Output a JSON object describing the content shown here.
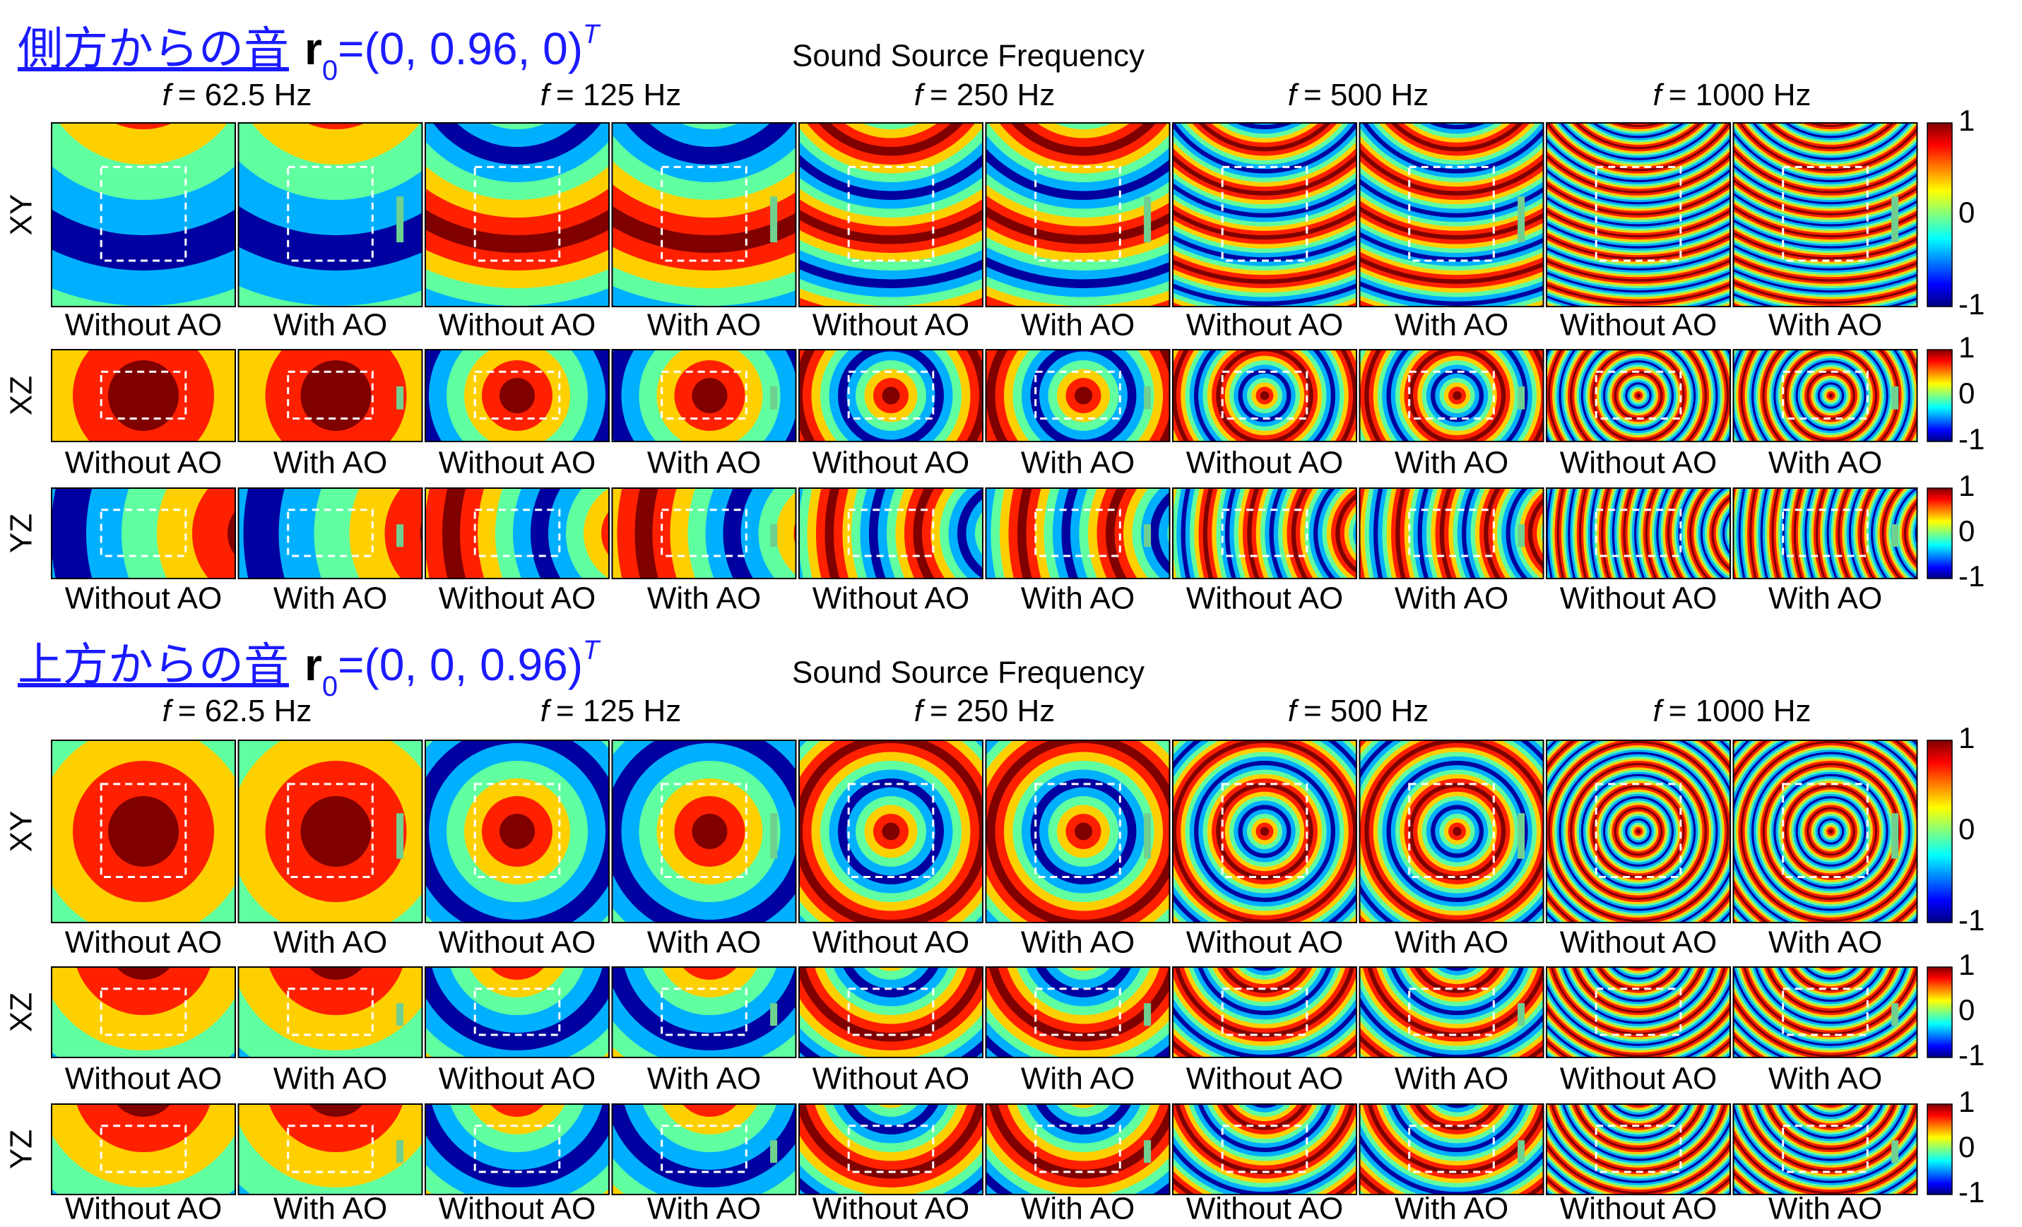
{
  "sections": [
    {
      "title": "側方からの音",
      "vector": "r",
      "subscript": "0",
      "equation": "=(0, 0.96, 0)",
      "superscript": "T",
      "axis_title": "Sound Source Frequency",
      "frequency_symbol": "f",
      "frequencies": [
        "= 62.5 Hz",
        "= 125 Hz",
        "= 250 Hz",
        "= 500 Hz",
        "= 1000 Hz"
      ],
      "rows": [
        {
          "plane": "XY"
        },
        {
          "plane": "XZ"
        },
        {
          "plane": "YZ"
        }
      ],
      "panel_labels": [
        "Without AO",
        "With AO"
      ],
      "colorbar_ticks": [
        1,
        0,
        -1
      ]
    },
    {
      "title": "上方からの音",
      "vector": "r",
      "subscript": "0",
      "equation": "=(0, 0, 0.96)",
      "superscript": "T",
      "axis_title": "Sound Source Frequency",
      "frequency_symbol": "f",
      "frequencies": [
        "= 62.5 Hz",
        "= 125 Hz",
        "= 250 Hz",
        "= 500 Hz",
        "= 1000 Hz"
      ],
      "rows": [
        {
          "plane": "XY"
        },
        {
          "plane": "XZ"
        },
        {
          "plane": "YZ"
        }
      ],
      "panel_labels": [
        "Without AO",
        "With AO"
      ],
      "colorbar_ticks": [
        1,
        0,
        -1
      ]
    }
  ]
}
